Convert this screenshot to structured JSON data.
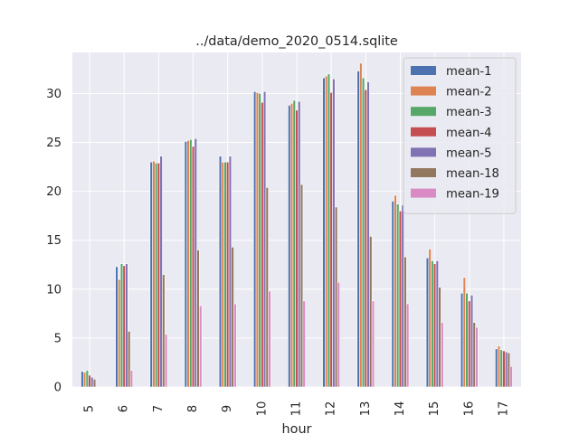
{
  "chart_data": {
    "type": "bar",
    "title": "../data/demo_2020_0514.sqlite",
    "xlabel": "hour",
    "ylabel": "",
    "categories": [
      "5",
      "6",
      "7",
      "8",
      "9",
      "10",
      "11",
      "12",
      "13",
      "14",
      "15",
      "16",
      "17"
    ],
    "ylim": [
      0,
      34.2
    ],
    "yticks": [
      0,
      5,
      10,
      15,
      20,
      25,
      30
    ],
    "grid": true,
    "legend_position": "top-right",
    "series": [
      {
        "name": "mean-1",
        "color": "#4c72b0",
        "values": [
          1.6,
          12.3,
          23.0,
          25.1,
          23.6,
          30.2,
          28.8,
          31.6,
          32.3,
          19.0,
          13.2,
          9.6,
          3.9
        ]
      },
      {
        "name": "mean-2",
        "color": "#dd8452",
        "values": [
          1.5,
          11.0,
          23.1,
          25.2,
          23.0,
          30.1,
          29.0,
          31.8,
          33.1,
          19.6,
          14.1,
          11.2,
          4.2
        ]
      },
      {
        "name": "mean-3",
        "color": "#55a868",
        "values": [
          1.7,
          12.6,
          22.9,
          25.3,
          23.0,
          30.0,
          29.3,
          32.0,
          31.6,
          18.7,
          12.9,
          9.6,
          3.8
        ]
      },
      {
        "name": "mean-4",
        "color": "#c44e52",
        "values": [
          1.2,
          12.4,
          22.9,
          24.6,
          23.0,
          29.1,
          28.3,
          30.1,
          30.4,
          18.0,
          12.6,
          8.8,
          3.7
        ]
      },
      {
        "name": "mean-5",
        "color": "#8172b3",
        "values": [
          1.0,
          12.6,
          23.6,
          25.4,
          23.6,
          30.2,
          29.2,
          31.5,
          31.2,
          18.6,
          12.9,
          9.4,
          3.6
        ]
      },
      {
        "name": "mean-18",
        "color": "#937860",
        "values": [
          0.8,
          5.7,
          11.5,
          14.0,
          14.3,
          20.4,
          20.7,
          18.4,
          15.4,
          13.3,
          10.2,
          6.6,
          3.5
        ]
      },
      {
        "name": "mean-19",
        "color": "#da8bc3",
        "values": [
          0.0,
          1.7,
          5.4,
          8.3,
          8.5,
          9.8,
          8.8,
          10.7,
          8.8,
          8.5,
          6.6,
          6.1,
          2.1
        ]
      }
    ]
  }
}
